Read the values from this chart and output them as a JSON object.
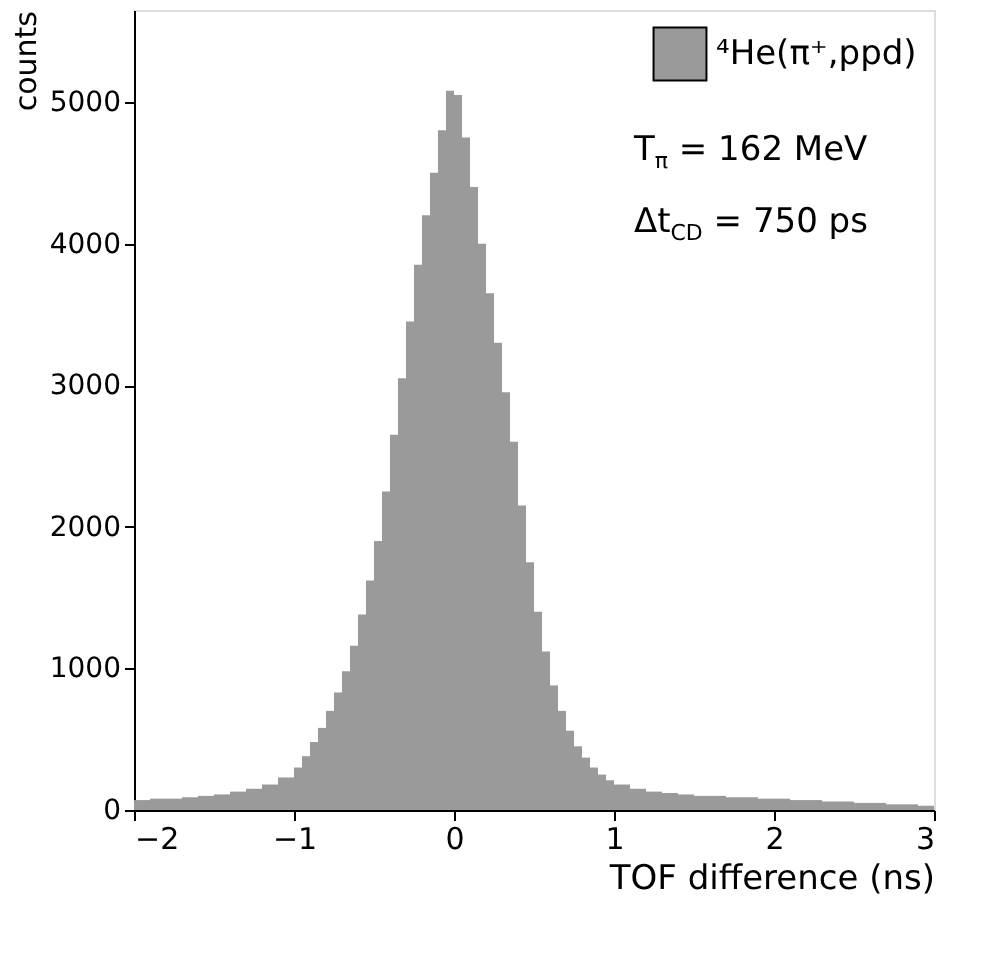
{
  "chart_data": {
    "type": "histogram",
    "xlabel": "TOF difference (ns)",
    "ylabel": "counts",
    "bins": [
      -2,
      -1.9,
      -1.8,
      -1.7,
      -1.6,
      -1.5,
      -1.4,
      -1.3,
      -1.2,
      -1.1,
      -1,
      -0.95,
      -0.9,
      -0.85,
      -0.8,
      -0.75,
      -0.7,
      -0.65,
      -0.6,
      -0.55,
      -0.5,
      -0.45,
      -0.4,
      -0.35,
      -0.3,
      -0.25,
      -0.2,
      -0.15,
      -0.1,
      -0.05,
      0,
      0.05,
      0.1,
      0.15,
      0.2,
      0.25,
      0.3,
      0.35,
      0.4,
      0.45,
      0.5,
      0.55,
      0.6,
      0.65,
      0.7,
      0.75,
      0.8,
      0.85,
      0.9,
      0.95,
      1,
      1.1,
      1.2,
      1.3,
      1.4,
      1.5,
      1.6,
      1.7,
      1.8,
      1.9,
      2,
      2.1,
      2.2,
      2.3,
      2.4,
      2.5,
      2.6,
      2.7,
      2.8,
      2.9,
      3
    ],
    "series": [
      {
        "name": "⁴He(π⁺,ppd)",
        "color": "#9a9a9a",
        "values": [
          70,
          80,
          80,
          90,
          100,
          110,
          130,
          150,
          180,
          230,
          300,
          380,
          480,
          580,
          700,
          830,
          980,
          1160,
          1380,
          1620,
          1900,
          2250,
          2650,
          3050,
          3450,
          3850,
          4200,
          4500,
          4800,
          5080,
          5050,
          4750,
          4400,
          4000,
          3650,
          3300,
          2950,
          2600,
          2150,
          1750,
          1400,
          1120,
          880,
          700,
          560,
          450,
          370,
          300,
          250,
          210,
          180,
          150,
          130,
          120,
          110,
          100,
          100,
          90,
          90,
          80,
          80,
          70,
          70,
          60,
          60,
          50,
          50,
          40,
          40,
          30
        ]
      }
    ],
    "xlim": [
      -2,
      3
    ],
    "xticks": [
      -2,
      -1,
      0,
      1,
      2,
      3
    ],
    "ylim": [
      0,
      5650
    ],
    "yticks": [
      0,
      1000,
      2000,
      3000,
      4000,
      5000
    ],
    "legend": "top right",
    "grid": false,
    "annotations": [
      "T$_{π}$ = 162 MeV",
      "Δt$_{CD}$ = 750 ps"
    ]
  }
}
